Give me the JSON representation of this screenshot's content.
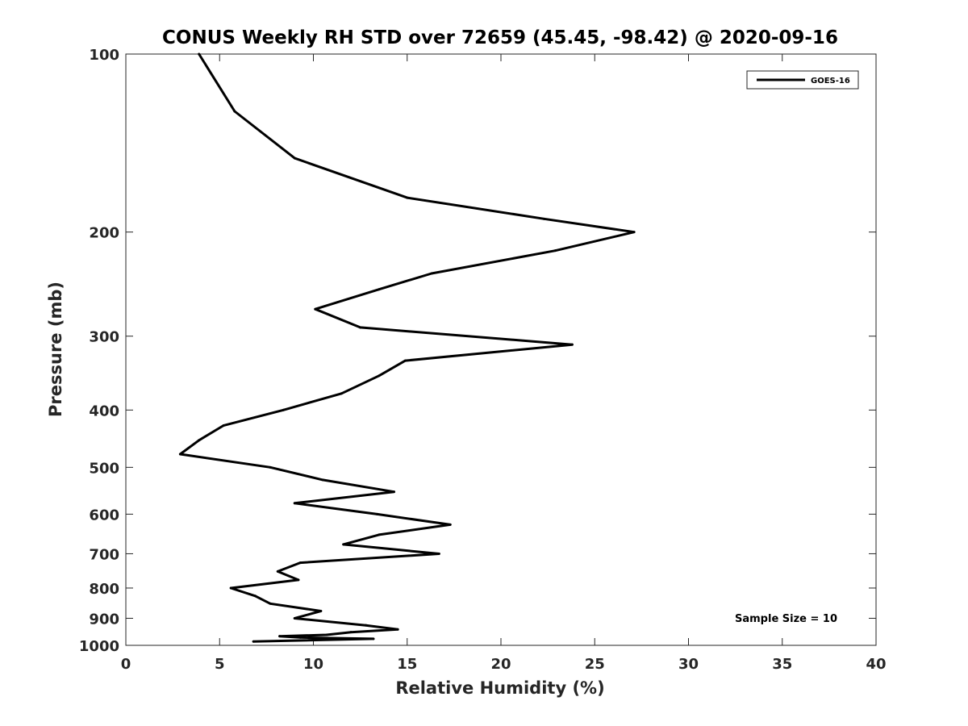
{
  "chart_data": {
    "type": "line",
    "title": "CONUS Weekly RH STD over 72659 (45.45, -98.42) @ 2020-09-16",
    "xlabel": "Relative Humidity (%)",
    "ylabel": "Pressure (mb)",
    "xlim": [
      0,
      40
    ],
    "ylim": [
      100,
      1000
    ],
    "y_scale": "log",
    "y_reversed": true,
    "x_ticks": [
      0,
      5,
      10,
      15,
      20,
      25,
      30,
      35,
      40
    ],
    "y_ticks": [
      100,
      200,
      300,
      400,
      500,
      600,
      700,
      800,
      900,
      1000
    ],
    "grid": false,
    "legend": "top-right",
    "annotation": "Sample Size = 10",
    "series": [
      {
        "name": "GOES-16",
        "color": "#000000",
        "points": [
          [
            3.9,
            100
          ],
          [
            5.8,
            125
          ],
          [
            9.0,
            150
          ],
          [
            15.0,
            175
          ],
          [
            22.3,
            190
          ],
          [
            27.1,
            200
          ],
          [
            22.9,
            215
          ],
          [
            16.3,
            235
          ],
          [
            13.5,
            250
          ],
          [
            10.1,
            270
          ],
          [
            12.5,
            290
          ],
          [
            23.8,
            310
          ],
          [
            14.9,
            330
          ],
          [
            13.5,
            350
          ],
          [
            11.5,
            375
          ],
          [
            8.4,
            400
          ],
          [
            5.2,
            425
          ],
          [
            3.9,
            450
          ],
          [
            2.9,
            475
          ],
          [
            7.7,
            500
          ],
          [
            10.5,
            525
          ],
          [
            14.3,
            550
          ],
          [
            9.0,
            575
          ],
          [
            13.4,
            600
          ],
          [
            17.3,
            625
          ],
          [
            13.5,
            650
          ],
          [
            11.6,
            675
          ],
          [
            16.7,
            700
          ],
          [
            9.3,
            725
          ],
          [
            8.1,
            750
          ],
          [
            9.2,
            775
          ],
          [
            5.6,
            800
          ],
          [
            6.9,
            825
          ],
          [
            7.7,
            850
          ],
          [
            10.4,
            875
          ],
          [
            9.0,
            900
          ],
          [
            12.8,
            925
          ],
          [
            14.5,
            940
          ],
          [
            12.0,
            950
          ],
          [
            10.7,
            960
          ],
          [
            8.2,
            965
          ],
          [
            9.3,
            970
          ],
          [
            13.2,
            975
          ],
          [
            6.8,
            985
          ]
        ]
      }
    ]
  }
}
